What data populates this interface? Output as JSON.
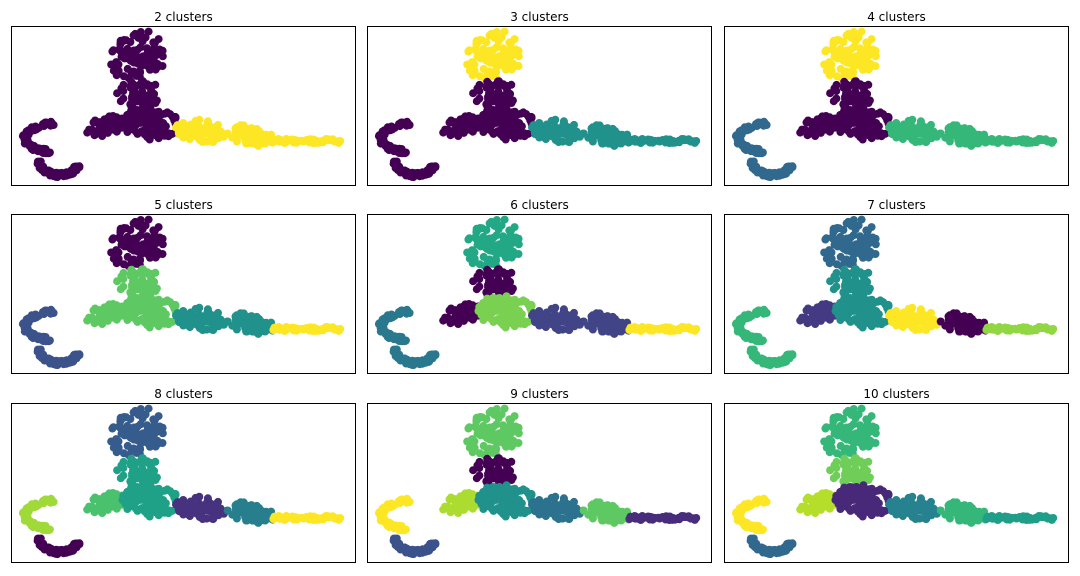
{
  "colors": {
    "viridis_2": [
      "#440154",
      "#fde725"
    ],
    "viridis_3": [
      "#440154",
      "#21918c",
      "#fde725"
    ],
    "viridis_4": [
      "#440154",
      "#31688e",
      "#35b779",
      "#fde725"
    ],
    "viridis_5": [
      "#440154",
      "#3b528b",
      "#21918c",
      "#5ec962",
      "#fde725"
    ],
    "viridis_6": [
      "#440154",
      "#414487",
      "#2a788e",
      "#22a884",
      "#7ad151",
      "#fde725"
    ],
    "viridis_7": [
      "#440154",
      "#443983",
      "#31688e",
      "#21918c",
      "#35b779",
      "#90d743",
      "#fde725"
    ],
    "viridis_8": [
      "#440154",
      "#46327e",
      "#365c8d",
      "#277f8e",
      "#1fa187",
      "#4ac16d",
      "#a0da39",
      "#fde725"
    ],
    "viridis_9": [
      "#440154",
      "#472d7b",
      "#3b528b",
      "#2c728e",
      "#21918c",
      "#28ae80",
      "#5ec962",
      "#addc30",
      "#fde725"
    ],
    "viridis_10": [
      "#440154",
      "#482878",
      "#3e4989",
      "#31688e",
      "#26828e",
      "#1f9e89",
      "#35b779",
      "#6ece58",
      "#b5de2b",
      "#fde725"
    ]
  },
  "chart_data": [
    {
      "type": "scatter",
      "title": "2 clusters",
      "segment_assignment": [
        0,
        0,
        0,
        0,
        0,
        0,
        1,
        1,
        1
      ],
      "n_clusters": 2
    },
    {
      "type": "scatter",
      "title": "3 clusters",
      "segment_assignment": [
        2,
        0,
        0,
        0,
        0,
        0,
        1,
        1,
        1
      ],
      "n_clusters": 3
    },
    {
      "type": "scatter",
      "title": "4 clusters",
      "segment_assignment": [
        3,
        0,
        1,
        1,
        0,
        0,
        2,
        2,
        2
      ],
      "n_clusters": 4
    },
    {
      "type": "scatter",
      "title": "5 clusters",
      "segment_assignment": [
        0,
        3,
        1,
        1,
        3,
        3,
        2,
        2,
        4
      ],
      "n_clusters": 5
    },
    {
      "type": "scatter",
      "title": "6 clusters",
      "segment_assignment": [
        3,
        0,
        2,
        2,
        0,
        4,
        1,
        1,
        5
      ],
      "n_clusters": 6
    },
    {
      "type": "scatter",
      "title": "7 clusters",
      "segment_assignment": [
        2,
        3,
        4,
        4,
        1,
        3,
        6,
        0,
        5
      ],
      "n_clusters": 7
    },
    {
      "type": "scatter",
      "title": "8 clusters",
      "segment_assignment": [
        2,
        4,
        6,
        0,
        5,
        4,
        1,
        3,
        7
      ],
      "n_clusters": 8
    },
    {
      "type": "scatter",
      "title": "9 clusters",
      "segment_assignment": [
        6,
        0,
        8,
        2,
        7,
        4,
        3,
        6,
        1
      ],
      "n_clusters": 9
    },
    {
      "type": "scatter",
      "title": "10 clusters",
      "segment_assignment": [
        6,
        7,
        9,
        3,
        8,
        1,
        4,
        6,
        5
      ],
      "n_clusters": 10
    }
  ]
}
